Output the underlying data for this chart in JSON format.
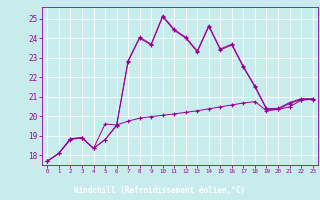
{
  "bg_color": "#c8ecec",
  "line_color": "#990099",
  "xlabel": "Windchill (Refroidissement éolien,°C)",
  "x_ticks": [
    0,
    1,
    2,
    3,
    4,
    5,
    6,
    7,
    8,
    9,
    10,
    11,
    12,
    13,
    14,
    15,
    16,
    17,
    18,
    19,
    20,
    21,
    22,
    23
  ],
  "y_ticks": [
    18,
    19,
    20,
    21,
    22,
    23,
    24,
    25
  ],
  "ylim": [
    17.5,
    25.6
  ],
  "xlim": [
    -0.5,
    23.5
  ],
  "curve1_x": [
    0,
    1,
    2,
    3,
    4,
    5,
    6,
    7,
    8,
    9,
    10,
    11,
    12,
    13,
    14,
    15,
    16,
    17,
    18,
    19,
    20,
    21,
    22,
    23
  ],
  "curve1_y": [
    17.7,
    18.1,
    18.8,
    18.9,
    18.35,
    18.8,
    19.5,
    22.8,
    24.0,
    23.65,
    25.1,
    24.4,
    24.0,
    23.3,
    24.6,
    23.4,
    23.65,
    22.5,
    21.5,
    20.35,
    20.35,
    20.65,
    20.85,
    20.85
  ],
  "curve2_x": [
    0,
    1,
    2,
    3,
    4,
    5,
    6,
    7,
    8,
    9,
    10,
    11,
    12,
    13,
    14,
    15,
    16,
    17,
    18,
    19,
    20,
    21,
    22,
    23
  ],
  "curve2_y": [
    17.7,
    18.1,
    18.85,
    18.9,
    18.35,
    19.6,
    19.55,
    22.85,
    24.05,
    23.7,
    25.15,
    24.45,
    24.05,
    23.35,
    24.65,
    23.45,
    23.7,
    22.55,
    21.55,
    20.4,
    20.4,
    20.7,
    20.9,
    20.9
  ],
  "curve3_x": [
    0,
    1,
    2,
    3,
    4,
    5,
    6,
    7,
    8,
    9,
    10,
    11,
    12,
    13,
    14,
    15,
    16,
    17,
    18,
    19,
    20,
    21,
    22,
    23
  ],
  "curve3_y": [
    17.7,
    18.1,
    18.85,
    18.9,
    18.35,
    18.8,
    19.55,
    19.75,
    19.9,
    19.98,
    20.05,
    20.12,
    20.2,
    20.28,
    20.38,
    20.48,
    20.58,
    20.68,
    20.75,
    20.28,
    20.35,
    20.48,
    20.82,
    20.88
  ],
  "xlabel_bg": "#330033",
  "xlabel_fg": "#ffffff",
  "axis_label_fontsize": 5.5,
  "tick_fontsize": 5.5
}
